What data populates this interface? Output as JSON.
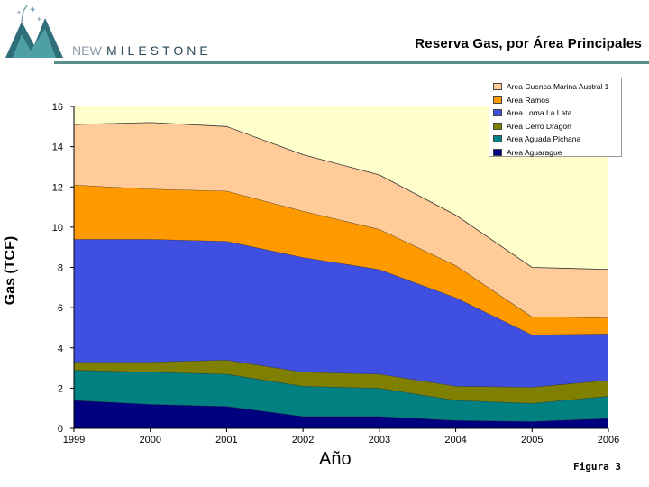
{
  "header": {
    "brand_new": "NEW",
    "brand_milestone": "MILESTONE",
    "title": "Reserva Gas, por Área Principales"
  },
  "footer": {
    "figure_label": "Figura 3"
  },
  "chart_data": {
    "type": "area",
    "stacked": true,
    "title": "Reserva Gas, por Área Principales",
    "xlabel": "Año",
    "ylabel": "Gas (TCF)",
    "x": [
      1999,
      2000,
      2001,
      2002,
      2003,
      2004,
      2005,
      2006
    ],
    "ylim": [
      0,
      16
    ],
    "yticks": [
      0,
      2,
      4,
      6,
      8,
      10,
      12,
      14,
      16
    ],
    "grid": false,
    "legend_position": "top-right",
    "series": [
      {
        "name": "Area Aguarague",
        "color": "#000080",
        "values": [
          1.4,
          1.2,
          1.1,
          0.6,
          0.6,
          0.4,
          0.35,
          0.5
        ]
      },
      {
        "name": "Area Aguada Pichana",
        "color": "#008080",
        "values": [
          1.5,
          1.6,
          1.6,
          1.5,
          1.4,
          1.0,
          0.9,
          1.1
        ]
      },
      {
        "name": "Area Cerro Dragón",
        "color": "#808000",
        "values": [
          0.4,
          0.5,
          0.7,
          0.7,
          0.7,
          0.7,
          0.8,
          0.8
        ]
      },
      {
        "name": "Area Loma La Lata",
        "color": "#3f4fe0",
        "values": [
          6.1,
          6.1,
          5.9,
          5.7,
          5.2,
          4.4,
          2.6,
          2.3
        ]
      },
      {
        "name": "Area Ramos",
        "color": "#ff9900",
        "values": [
          2.7,
          2.5,
          2.5,
          2.3,
          2.0,
          1.6,
          0.9,
          0.8
        ]
      },
      {
        "name": "Area Cuenca Marina Austral 1",
        "color": "#ffcc99",
        "values": [
          3.0,
          3.3,
          3.2,
          2.8,
          2.7,
          2.5,
          2.45,
          2.4
        ]
      }
    ],
    "background_fill": "#ffffcc"
  }
}
